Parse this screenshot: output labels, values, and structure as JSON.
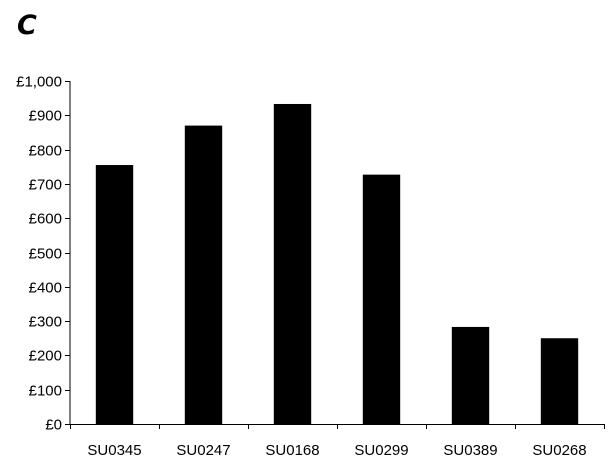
{
  "panel_label": "C",
  "chart_data": {
    "type": "bar",
    "title": "",
    "xlabel": "",
    "ylabel": "",
    "categories": [
      "SU0345",
      "SU0247",
      "SU0168",
      "SU0299",
      "SU0389",
      "SU0268"
    ],
    "values": [
      755,
      870,
      933,
      727,
      283,
      250
    ],
    "ylim": [
      0,
      1000
    ],
    "y_ticks": [
      0,
      100,
      200,
      300,
      400,
      500,
      600,
      700,
      800,
      900,
      1000
    ],
    "y_tick_labels": [
      "£0",
      "£100",
      "£200",
      "£300",
      "£400",
      "£500",
      "£600",
      "£700",
      "£800",
      "£900",
      "£1,000"
    ],
    "grid": false,
    "legend": "none",
    "bar_color": "#000000"
  }
}
